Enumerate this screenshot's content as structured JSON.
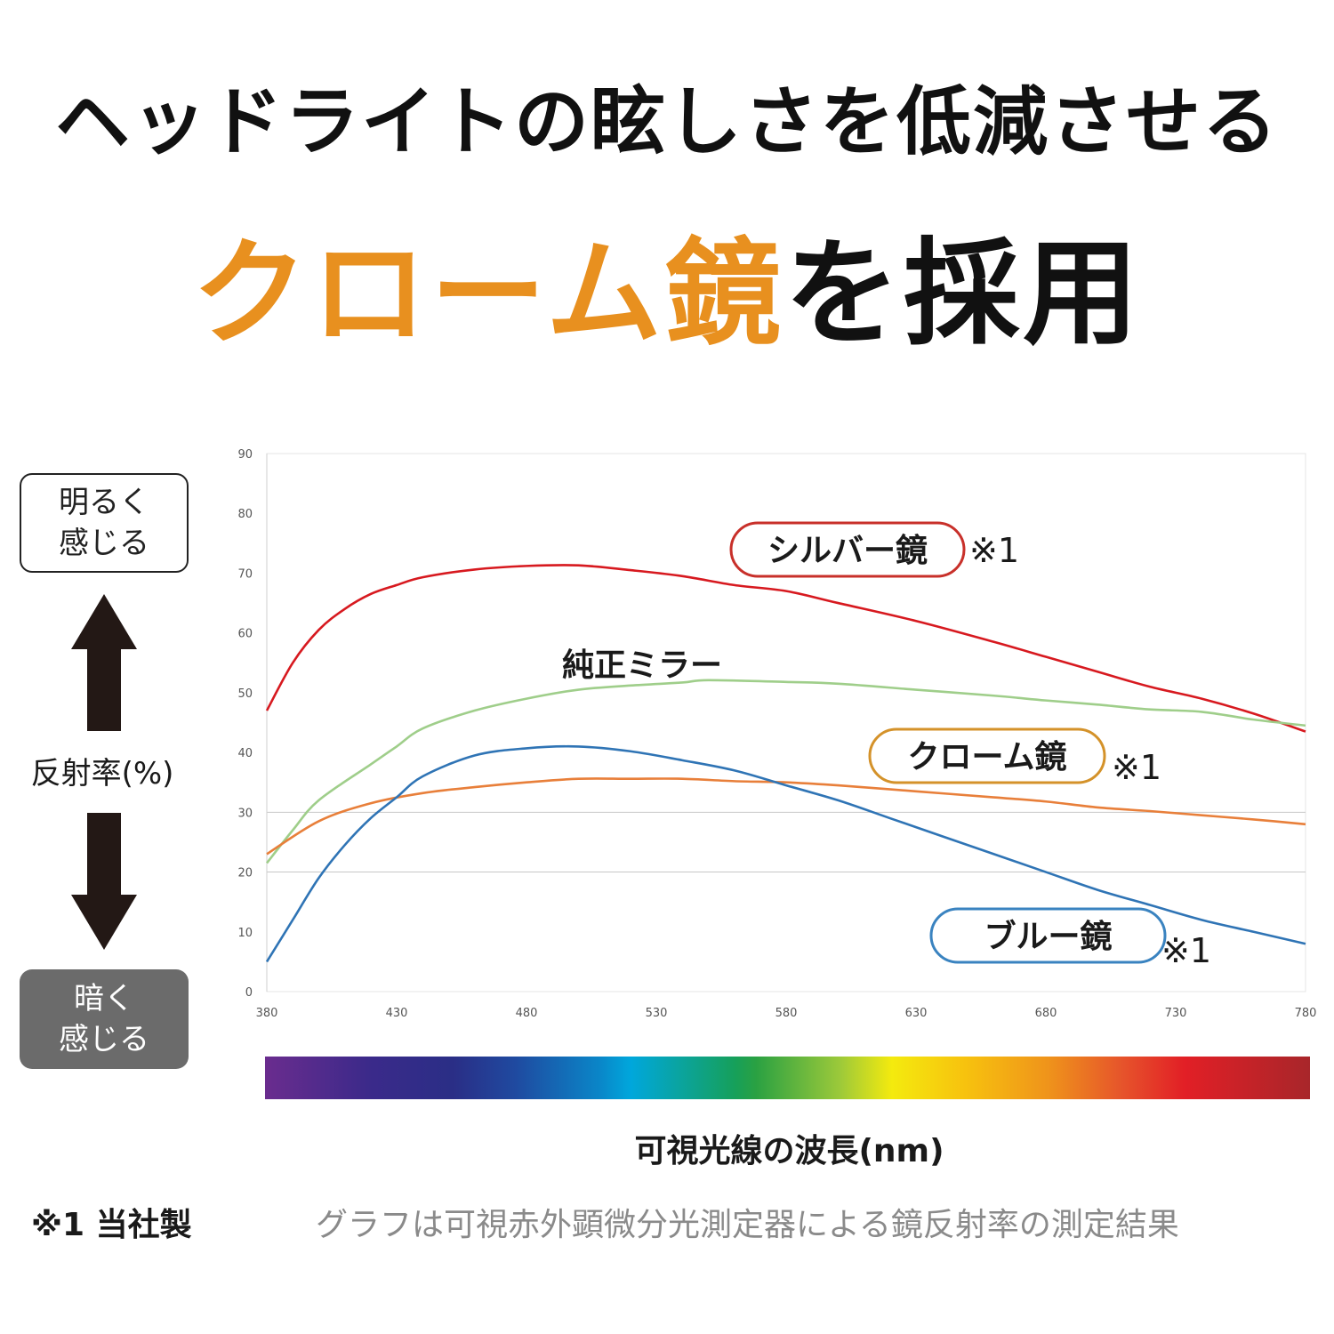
{
  "header": {
    "title_line1": "ヘッドライトの眩しさを低減させる",
    "title_highlight": "クローム鏡",
    "title_rest": "を採用",
    "highlight_color": "#e8901f"
  },
  "side": {
    "bright_label": "明るく\n感じる",
    "dark_label": "暗く\n感じる",
    "axis_label": "反射率(%)"
  },
  "chart_data": {
    "type": "line",
    "title": "",
    "xlabel": "可視光線の波長(nm)",
    "ylabel": "反射率(%)",
    "xlim": [
      380,
      780
    ],
    "ylim": [
      0,
      90
    ],
    "xticks": [
      380,
      430,
      480,
      530,
      580,
      630,
      680,
      730,
      780
    ],
    "yticks": [
      0,
      10,
      20,
      30,
      40,
      50,
      60,
      70,
      80,
      90
    ],
    "grid_y": [
      20,
      30
    ],
    "series": [
      {
        "name": "シルバー鏡",
        "note": "※1",
        "color": "#d7191f",
        "x": [
          380,
          390,
          400,
          410,
          420,
          430,
          440,
          460,
          480,
          500,
          520,
          540,
          560,
          580,
          600,
          630,
          660,
          680,
          700,
          720,
          740,
          760,
          780
        ],
        "y": [
          47,
          55,
          60.5,
          64,
          66.5,
          68,
          69.3,
          70.6,
          71.2,
          71.3,
          70.5,
          69.5,
          68,
          67,
          65,
          62,
          58.5,
          56,
          53.5,
          51,
          49,
          46.5,
          43.5
        ]
      },
      {
        "name": "純正ミラー",
        "note": "",
        "color": "#9fce8a",
        "x": [
          380,
          390,
          400,
          420,
          430,
          440,
          460,
          480,
          500,
          520,
          540,
          550,
          580,
          600,
          630,
          660,
          680,
          700,
          720,
          740,
          760,
          780
        ],
        "y": [
          21.5,
          27,
          32,
          38,
          41,
          44,
          47,
          49,
          50.5,
          51.2,
          51.7,
          52.1,
          51.8,
          51.5,
          50.5,
          49.5,
          48.7,
          48,
          47.2,
          46.8,
          45.5,
          44.5
        ]
      },
      {
        "name": "クローム鏡",
        "note": "※1",
        "color": "#e87f3a",
        "x": [
          380,
          400,
          420,
          440,
          460,
          480,
          500,
          520,
          540,
          560,
          580,
          600,
          630,
          660,
          680,
          700,
          720,
          740,
          760,
          780
        ],
        "y": [
          23,
          28.5,
          31.5,
          33.2,
          34.2,
          35,
          35.6,
          35.6,
          35.6,
          35.2,
          35,
          34.5,
          33.5,
          32.5,
          31.8,
          30.8,
          30.2,
          29.5,
          28.8,
          28
        ]
      },
      {
        "name": "ブルー鏡",
        "note": "※1",
        "color": "#2f74b5",
        "x": [
          380,
          390,
          400,
          410,
          420,
          430,
          440,
          460,
          480,
          500,
          520,
          540,
          560,
          580,
          600,
          620,
          640,
          660,
          680,
          700,
          720,
          740,
          760,
          780
        ],
        "y": [
          5,
          12,
          19,
          24.5,
          29,
          32.5,
          36,
          39.5,
          40.7,
          41,
          40.2,
          38.7,
          37,
          34.5,
          32,
          29,
          26,
          23,
          20,
          17,
          14.5,
          12,
          10,
          8
        ]
      }
    ],
    "label_border_colors": {
      "シルバー鏡": "#c8302a",
      "クローム鏡": "#d4922a",
      "ブルー鏡": "#3a83c0"
    }
  },
  "footer": {
    "footnote": "※1 当社製",
    "source": "グラフは可視赤外顕微分光測定器による鏡反射率の測定結果"
  }
}
